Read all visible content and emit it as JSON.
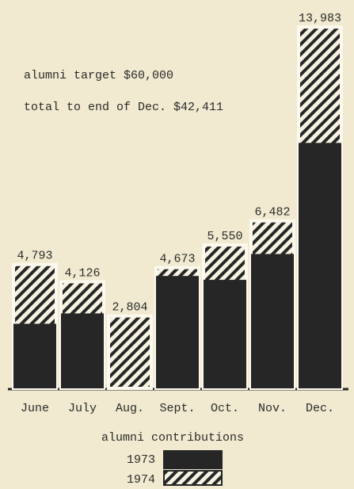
{
  "chart_data": {
    "type": "bar",
    "stacking": "overlay",
    "title": "alumni contributions",
    "annotations": [
      "alumni target $60,000",
      "total to end of Dec. $42,411"
    ],
    "categories": [
      "June",
      "July",
      "Aug.",
      "Sept.",
      "Oct.",
      "Nov.",
      "Dec."
    ],
    "series": [
      {
        "name": "1973",
        "color": "#262626",
        "pattern": "solid",
        "values": [
          2500,
          2900,
          0,
          4350,
          4200,
          5200,
          9500
        ]
      },
      {
        "name": "1974",
        "color": "#262626",
        "pattern": "hatch",
        "values": [
          4793,
          4126,
          2804,
          4673,
          5550,
          6482,
          13983
        ],
        "value_labels": [
          "4,793",
          "4,126",
          "2,804",
          "4,673",
          "5,550",
          "6,482",
          "13,983"
        ]
      }
    ],
    "ylim": [
      0,
      15000
    ]
  }
}
